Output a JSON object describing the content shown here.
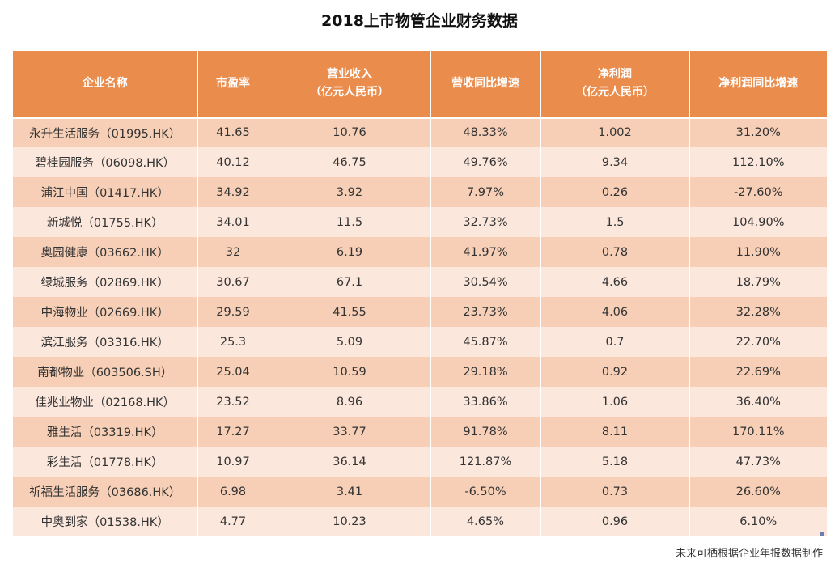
{
  "title": "2018上市物管企业财务数据",
  "table": {
    "headers": [
      {
        "line1": "企业名称",
        "line2": ""
      },
      {
        "line1": "市盈率",
        "line2": ""
      },
      {
        "line1": "营业收入",
        "line2": "（亿元人民币）"
      },
      {
        "line1": "营收同比增速",
        "line2": ""
      },
      {
        "line1": "净利润",
        "line2": "（亿元人民币）"
      },
      {
        "line1": "净利润同比增速",
        "line2": ""
      }
    ],
    "rows": [
      [
        "永升生活服务（01995.HK）",
        "41.65",
        "10.76",
        "48.33%",
        "1.002",
        "31.20%"
      ],
      [
        "碧桂园服务（06098.HK）",
        "40.12",
        "46.75",
        "49.76%",
        "9.34",
        "112.10%"
      ],
      [
        "浦江中国（01417.HK）",
        "34.92",
        "3.92",
        "7.97%",
        "0.26",
        "-27.60%"
      ],
      [
        "新城悦（01755.HK）",
        "34.01",
        "11.5",
        "32.73%",
        "1.5",
        "104.90%"
      ],
      [
        "奥园健康（03662.HK）",
        "32",
        "6.19",
        "41.97%",
        "0.78",
        "11.90%"
      ],
      [
        "绿城服务（02869.HK）",
        "30.67",
        "67.1",
        "30.54%",
        "4.66",
        "18.79%"
      ],
      [
        "中海物业（02669.HK）",
        "29.59",
        "41.55",
        "23.73%",
        "4.06",
        "32.28%"
      ],
      [
        "滨江服务（03316.HK）",
        "25.3",
        "5.09",
        "45.87%",
        "0.7",
        "22.70%"
      ],
      [
        "南都物业（603506.SH）",
        "25.04",
        "10.59",
        "29.18%",
        "0.92",
        "22.69%"
      ],
      [
        "佳兆业物业（02168.HK）",
        "23.52",
        "8.96",
        "33.86%",
        "1.06",
        "36.40%"
      ],
      [
        "雅生活（03319.HK）",
        "17.27",
        "33.77",
        "91.78%",
        "8.11",
        "170.11%"
      ],
      [
        "彩生活（01778.HK）",
        "10.97",
        "36.14",
        "121.87%",
        "5.18",
        "47.73%"
      ],
      [
        "祈福生活服务（03686.HK）",
        "6.98",
        "3.41",
        "-6.50%",
        "0.73",
        "26.60%"
      ],
      [
        "中奥到家（01538.HK）",
        "4.77",
        "10.23",
        "4.65%",
        "0.96",
        "6.10%"
      ]
    ]
  },
  "source": "未来可栖根据企业年报数据制作",
  "colors": {
    "header_bg": "#ea8c4b",
    "row_dark": "#f6cfb6",
    "row_light": "#fbe7dc"
  }
}
